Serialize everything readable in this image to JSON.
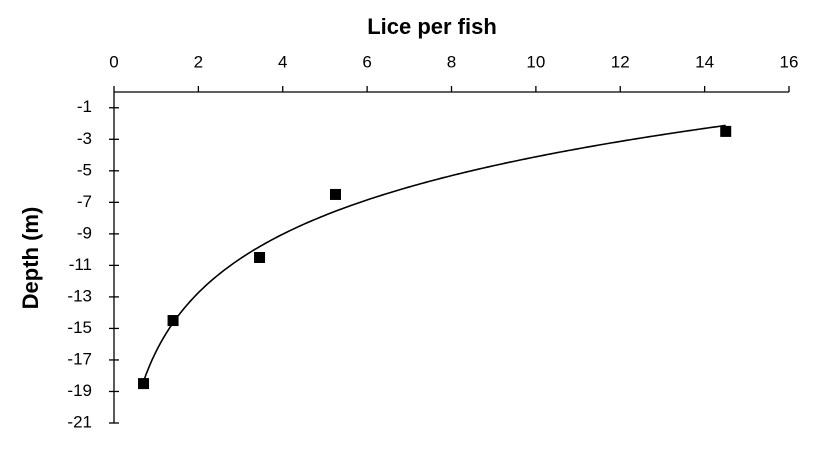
{
  "chart_data": {
    "type": "scatter",
    "title": "Lice per fish",
    "y_label": "Depth (m)",
    "x": [
      0.7,
      1.4,
      3.45,
      5.25,
      14.5
    ],
    "values": [
      -18.5,
      -14.5,
      -10.5,
      -6.5,
      -2.5
    ],
    "color": "#000000",
    "marker": "square",
    "trendline": "logarithmic",
    "x_axis_position": "top",
    "xlim": [
      0,
      16
    ],
    "xticks": [
      0,
      2,
      4,
      6,
      8,
      10,
      12,
      14,
      16
    ],
    "ylim": [
      -21,
      0
    ],
    "yticks": [
      -1,
      -3,
      -5,
      -7,
      -9,
      -11,
      -13,
      -15,
      -17,
      -19,
      -21
    ]
  }
}
